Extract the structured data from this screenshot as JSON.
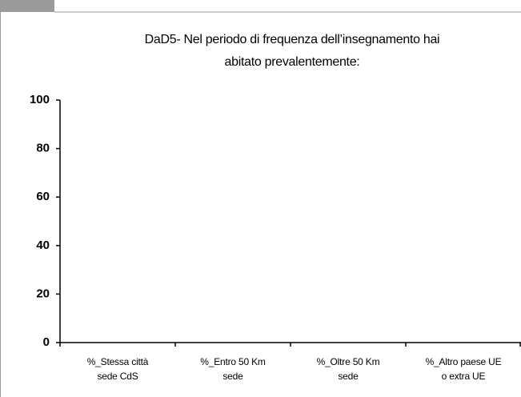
{
  "chart_data": {
    "type": "bar",
    "title": "DaD5- Nel periodo di frequenza dell’insegnamento hai abitato prevalentemente:",
    "categories": [
      "%_Stessa città sede CdS",
      "%_Entro 50 Km sede",
      "%_Oltre 50 Km sede",
      "%_Altro paese UE o extra UE"
    ],
    "values": [
      0,
      0,
      0,
      0
    ],
    "color": "#4472c4",
    "ylim": [
      0,
      100
    ],
    "yticks": [
      0,
      20,
      40,
      60,
      80,
      100
    ],
    "grid": false
  }
}
